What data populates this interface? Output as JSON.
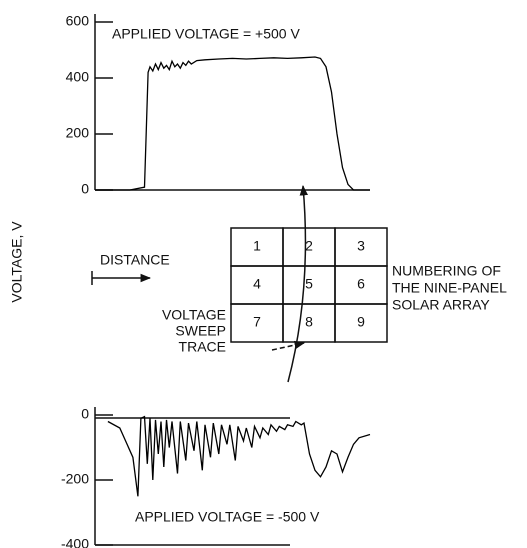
{
  "chart_data": [
    {
      "type": "line",
      "annotation": "APPLIED VOLTAGE = +500 V",
      "xlim": [
        0,
        100
      ],
      "ylim": [
        0,
        600
      ],
      "yticks": [
        0,
        200,
        400,
        600
      ],
      "color": "#000000",
      "x": [
        0,
        12.7,
        18,
        19.3,
        20,
        21,
        22,
        23,
        24,
        25,
        26,
        27,
        28,
        29,
        30,
        31,
        32,
        33,
        34,
        35,
        37,
        40,
        45,
        50,
        55,
        60,
        65,
        70,
        75,
        80,
        82,
        84,
        86,
        88,
        90,
        92,
        94,
        100
      ],
      "values": [
        0,
        0,
        10,
        420,
        440,
        425,
        450,
        430,
        455,
        435,
        445,
        430,
        460,
        440,
        450,
        435,
        455,
        445,
        460,
        450,
        462,
        465,
        468,
        470,
        468,
        470,
        472,
        470,
        472,
        475,
        470,
        440,
        350,
        200,
        80,
        20,
        0,
        0
      ]
    },
    {
      "type": "line",
      "annotation": "APPLIED VOLTAGE = -500 V",
      "xlim": [
        0,
        100
      ],
      "ylim": [
        -400,
        0
      ],
      "yticks": [
        -400,
        -200,
        0
      ],
      "color": "#000000",
      "x": [
        4.7,
        9,
        13.8,
        15.6,
        16.7,
        18,
        19,
        20,
        21,
        22,
        23,
        24,
        25,
        26,
        27,
        28,
        30,
        31,
        33,
        34,
        36,
        37,
        39,
        40,
        42,
        43,
        45,
        46,
        48,
        49,
        51,
        52,
        54,
        55,
        57,
        58,
        60,
        61,
        63,
        64,
        66,
        67,
        69,
        70,
        72,
        73,
        75,
        76,
        78,
        80,
        82,
        84,
        86,
        88,
        90,
        92,
        94,
        96,
        100
      ],
      "values": [
        -20,
        -40,
        -130,
        -250,
        -10,
        -5,
        -150,
        -10,
        -200,
        -15,
        -120,
        -20,
        -160,
        -15,
        -100,
        -20,
        -180,
        -20,
        -140,
        -25,
        -110,
        -20,
        -170,
        -30,
        -130,
        -25,
        -120,
        -30,
        -90,
        -30,
        -140,
        -35,
        -80,
        -40,
        -100,
        -35,
        -70,
        -40,
        -60,
        -30,
        -50,
        -35,
        -45,
        -30,
        -35,
        -20,
        -30,
        -25,
        -120,
        -170,
        -190,
        -160,
        -110,
        -120,
        -175,
        -130,
        -90,
        -70,
        -60
      ]
    }
  ],
  "ylabel": "VOLTAGE, V",
  "distance_label": "DISTANCE",
  "panels": [
    "1",
    "2",
    "3",
    "4",
    "5",
    "6",
    "7",
    "8",
    "9"
  ],
  "panel_caption": [
    "NUMBERING OF",
    "THE NINE-PANEL",
    "SOLAR ARRAY"
  ],
  "trace_label": [
    "VOLTAGE",
    "SWEEP",
    "TRACE"
  ]
}
